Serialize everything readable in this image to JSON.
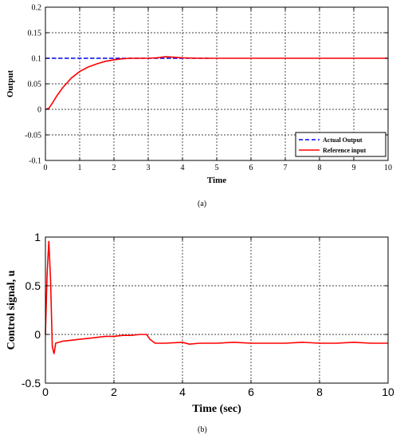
{
  "chart_data": [
    {
      "type": "line",
      "title": "",
      "xlabel": "Time",
      "ylabel": "Output",
      "xlim": [
        0,
        10
      ],
      "ylim": [
        -0.1,
        0.2
      ],
      "xticks": [
        0,
        1,
        2,
        3,
        4,
        5,
        6,
        7,
        8,
        9,
        10
      ],
      "yticks": [
        -0.1,
        -0.05,
        0,
        0.05,
        0.1,
        0.15,
        0.2
      ],
      "xtick_labels": [
        "0",
        "1",
        "2",
        "3",
        "4",
        "5",
        "6",
        "7",
        "8",
        "9",
        "10"
      ],
      "ytick_labels": [
        "-0.1",
        "-0.05",
        "0",
        "0.05",
        "0.1",
        "0.15",
        "0.2"
      ],
      "grid": true,
      "legend_position": "bottom-right",
      "series": [
        {
          "name": "Actual Output",
          "color": "#0000ff",
          "style": "dashed",
          "x": [
            0,
            4.85
          ],
          "y": [
            0.1,
            0.1
          ]
        },
        {
          "name": "Reference input",
          "color": "#ff0000",
          "style": "solid",
          "x": [
            0,
            0.1,
            0.2,
            0.35,
            0.5,
            0.75,
            1.0,
            1.25,
            1.5,
            1.75,
            2.0,
            2.25,
            2.5,
            2.75,
            3.0,
            3.25,
            3.5,
            3.75,
            4.0,
            4.5,
            5.0,
            6.0,
            7.0,
            8.0,
            9.0,
            10.0
          ],
          "y": [
            0,
            0.002,
            0.012,
            0.028,
            0.042,
            0.061,
            0.074,
            0.083,
            0.089,
            0.094,
            0.097,
            0.099,
            0.1,
            0.1,
            0.1,
            0.101,
            0.103,
            0.102,
            0.101,
            0.1,
            0.1,
            0.1,
            0.1,
            0.1,
            0.1,
            0.1
          ]
        }
      ],
      "caption": "(a)"
    },
    {
      "type": "line",
      "title": "",
      "xlabel": "Time (sec)",
      "ylabel": "Control signal, u",
      "xlim": [
        0,
        10
      ],
      "ylim": [
        -0.5,
        1
      ],
      "xticks": [
        0,
        2,
        4,
        6,
        8,
        10
      ],
      "yticks": [
        -0.5,
        0,
        0.5,
        1
      ],
      "xtick_labels": [
        "0",
        "2",
        "4",
        "6",
        "8",
        "10"
      ],
      "ytick_labels": [
        "-0.5",
        "0",
        "0.5",
        "1"
      ],
      "grid": true,
      "series": [
        {
          "color": "#ff0000",
          "style": "solid",
          "x": [
            0,
            0.05,
            0.1,
            0.15,
            0.2,
            0.25,
            0.3,
            0.5,
            0.75,
            1.0,
            1.25,
            1.5,
            1.75,
            2.0,
            2.25,
            2.5,
            2.75,
            2.95,
            3.05,
            3.2,
            3.5,
            4.0,
            4.2,
            4.5,
            5.0,
            5.5,
            6.0,
            6.5,
            7.0,
            7.5,
            8.0,
            8.5,
            9.0,
            9.5,
            10.0
          ],
          "y": [
            0.0,
            0.62,
            0.96,
            0.55,
            -0.12,
            -0.2,
            -0.09,
            -0.07,
            -0.06,
            -0.05,
            -0.04,
            -0.03,
            -0.02,
            -0.02,
            -0.01,
            -0.01,
            0.0,
            0.0,
            -0.05,
            -0.09,
            -0.09,
            -0.08,
            -0.1,
            -0.09,
            -0.09,
            -0.08,
            -0.09,
            -0.09,
            -0.09,
            -0.08,
            -0.09,
            -0.09,
            -0.08,
            -0.09,
            -0.09
          ]
        }
      ],
      "caption": "(b)"
    }
  ]
}
